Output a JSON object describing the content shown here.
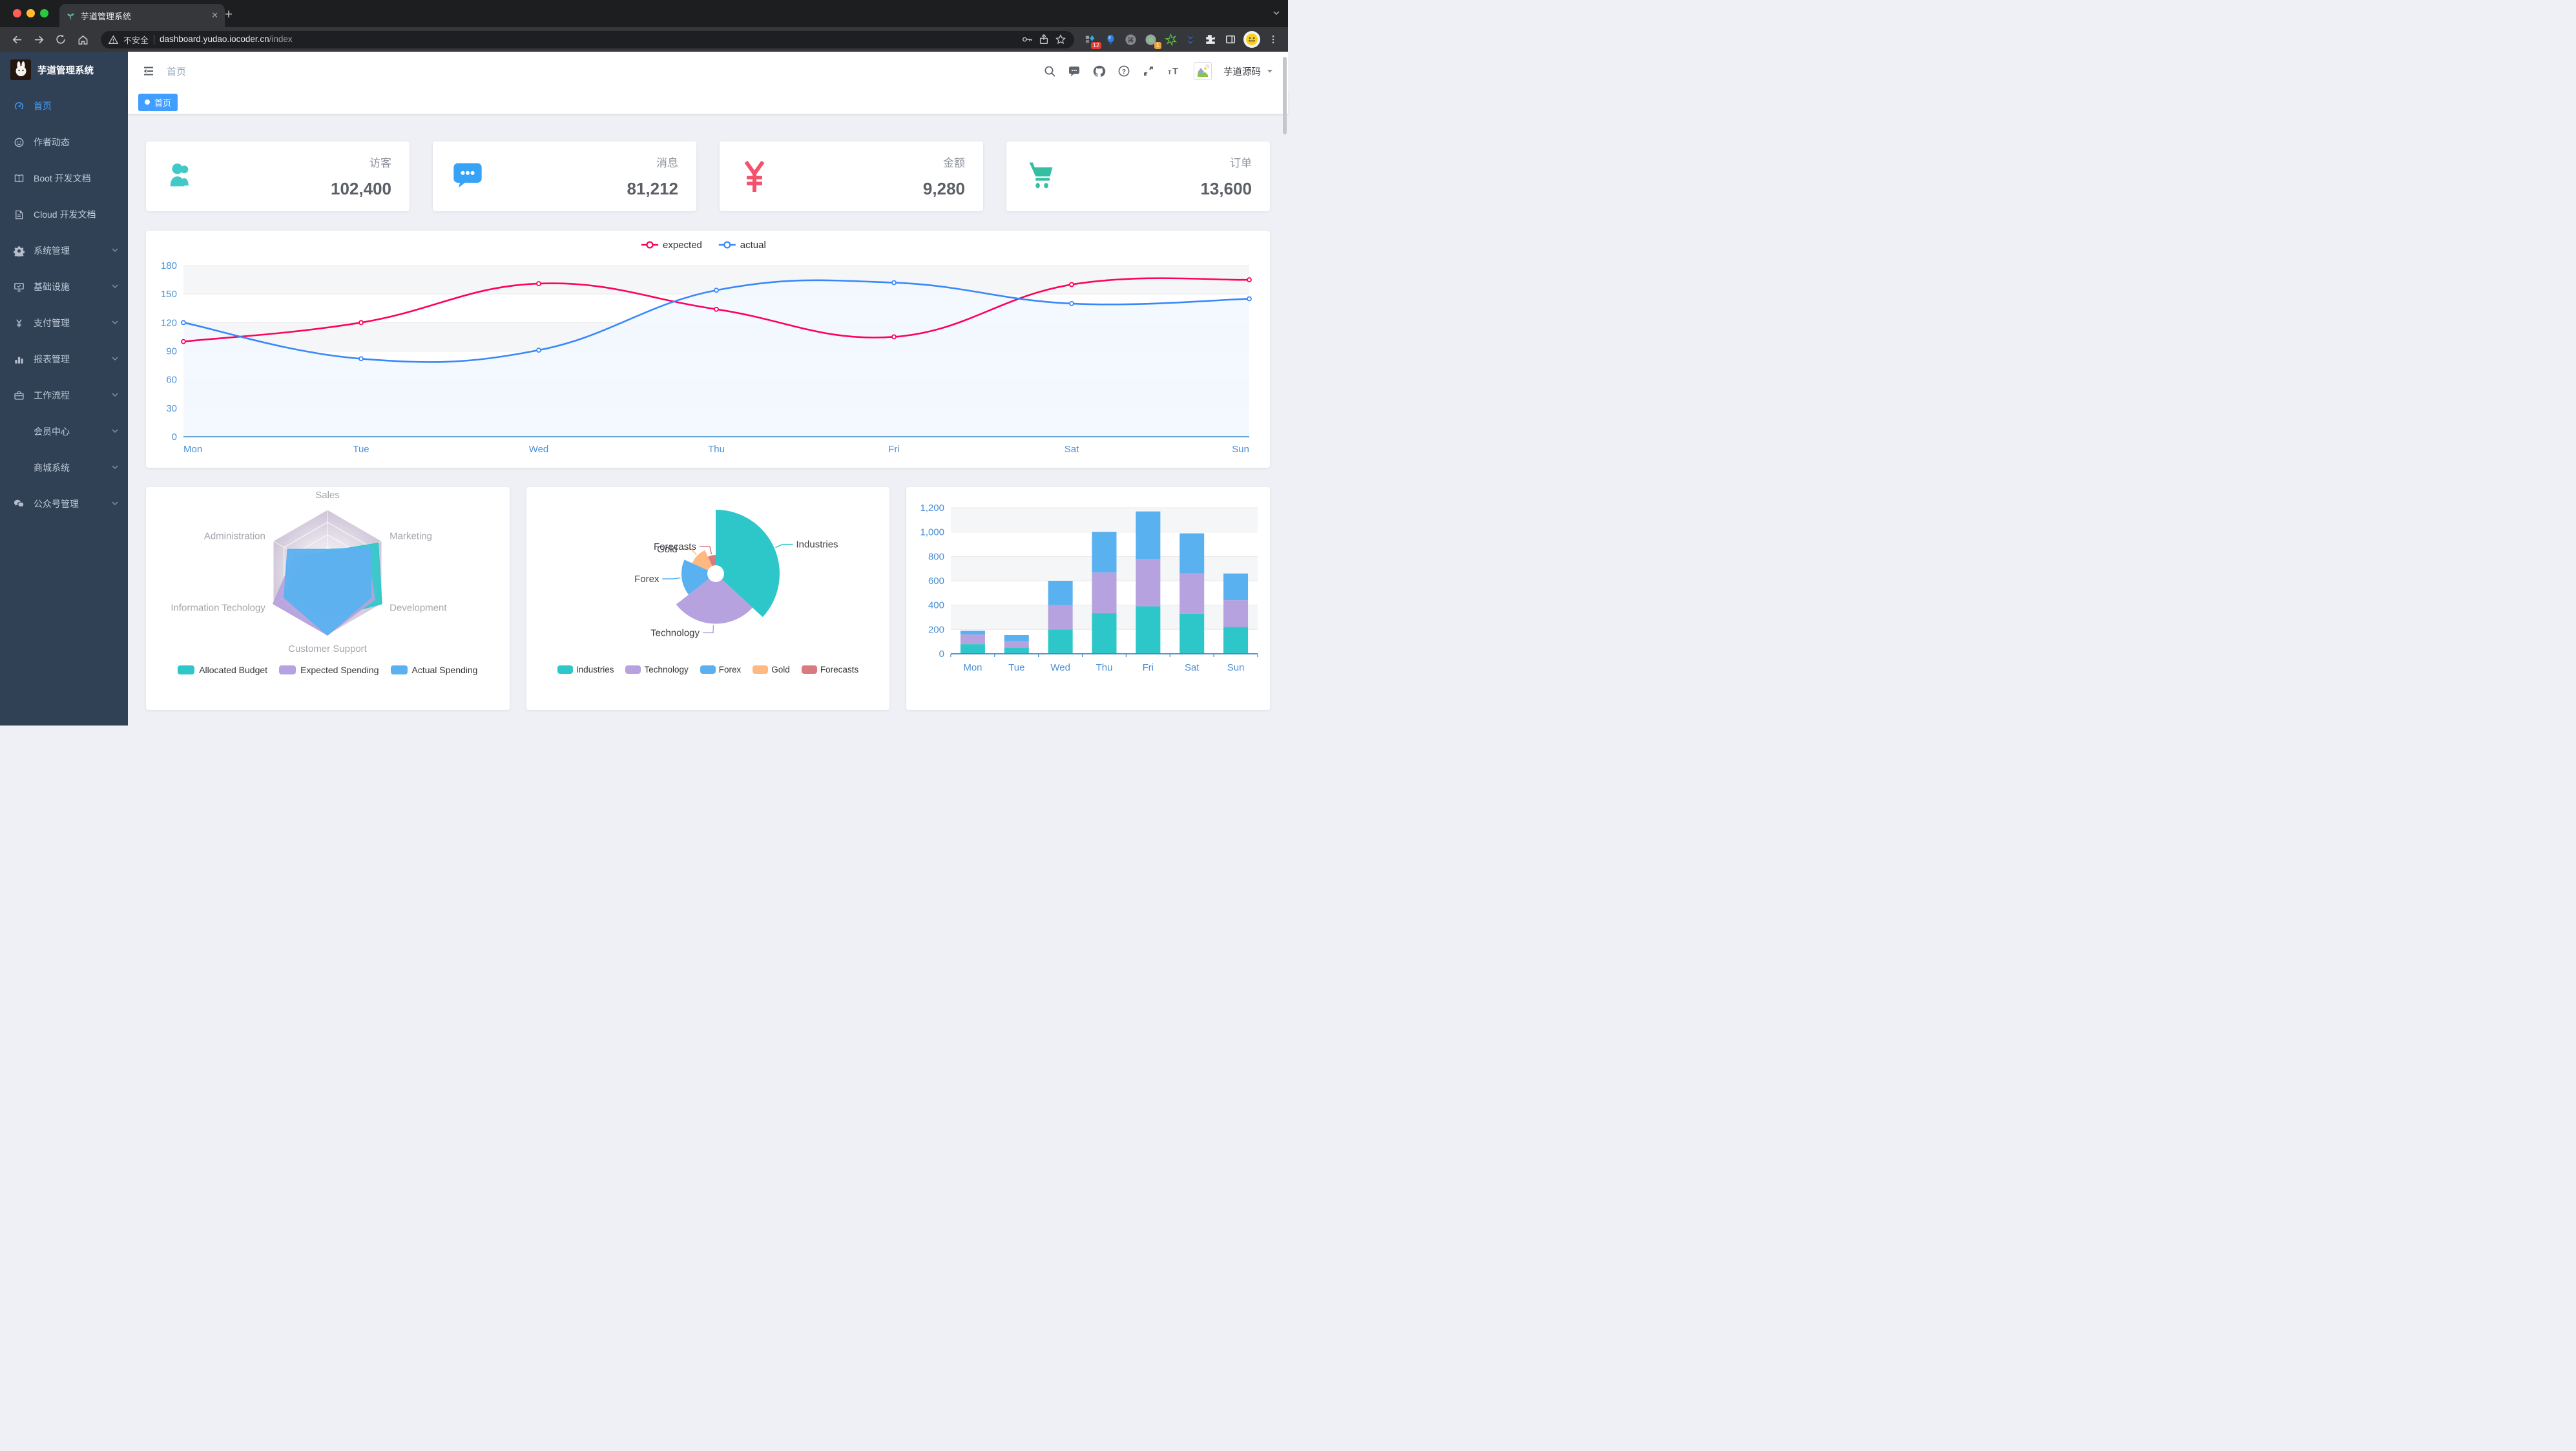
{
  "browser": {
    "tab": {
      "title": "芋道管理系统",
      "close_glyph": "✕",
      "new_tab_glyph": "+"
    },
    "address": {
      "security_label": "不安全",
      "host": "dashboard.yudao.iocoder.cn",
      "path": "/index"
    },
    "badges": {
      "extension_1": "12",
      "extension_2": "1"
    }
  },
  "sidebar": {
    "logo_title": "芋道管理系统",
    "items": [
      {
        "label": "首页",
        "icon": "dashboard-icon",
        "active": true,
        "arrow": false,
        "indent": false
      },
      {
        "label": "作者动态",
        "icon": "people-icon",
        "active": false,
        "arrow": false,
        "indent": false
      },
      {
        "label": "Boot 开发文档",
        "icon": "book-icon",
        "active": false,
        "arrow": false,
        "indent": false
      },
      {
        "label": "Cloud 开发文档",
        "icon": "document-icon",
        "active": false,
        "arrow": false,
        "indent": false
      },
      {
        "label": "系统管理",
        "icon": "gear-icon",
        "active": false,
        "arrow": true,
        "indent": false
      },
      {
        "label": "基础设施",
        "icon": "monitor-icon",
        "active": false,
        "arrow": true,
        "indent": false
      },
      {
        "label": "支付管理",
        "icon": "yen-icon",
        "active": false,
        "arrow": true,
        "indent": false
      },
      {
        "label": "报表管理",
        "icon": "bar-chart-icon",
        "active": false,
        "arrow": true,
        "indent": false
      },
      {
        "label": "工作流程",
        "icon": "briefcase-icon",
        "active": false,
        "arrow": true,
        "indent": false
      },
      {
        "label": "会员中心",
        "icon": null,
        "active": false,
        "arrow": true,
        "indent": true
      },
      {
        "label": "商城系统",
        "icon": null,
        "active": false,
        "arrow": true,
        "indent": true
      },
      {
        "label": "公众号管理",
        "icon": "wechat-icon",
        "active": false,
        "arrow": true,
        "indent": false
      }
    ]
  },
  "navbar": {
    "breadcrumb": "首页",
    "username": "芋道源码"
  },
  "tags_view": {
    "tags": [
      {
        "label": "首页",
        "active": true
      }
    ]
  },
  "stats": [
    {
      "label": "访客",
      "value": "102,400",
      "icon": "people-group-icon",
      "color": "#40c9c6"
    },
    {
      "label": "消息",
      "value": "81,212",
      "icon": "message-icon",
      "color": "#36a3f7"
    },
    {
      "label": "金额",
      "value": "9,280",
      "icon": "money-icon",
      "color": "#f4516c"
    },
    {
      "label": "订单",
      "value": "13,600",
      "icon": "cart-icon",
      "color": "#34bfa3"
    }
  ],
  "chart_data": [
    {
      "id": "weekly-line",
      "type": "line",
      "x": [
        "Mon",
        "Tue",
        "Wed",
        "Thu",
        "Fri",
        "Sat",
        "Sun"
      ],
      "series": [
        {
          "name": "expected",
          "color": "#FF005A",
          "values": [
            100,
            120,
            161,
            134,
            105,
            160,
            165
          ]
        },
        {
          "name": "actual",
          "color": "#3888fa",
          "area_color": "#f3f8ff",
          "values": [
            120,
            82,
            91,
            154,
            162,
            140,
            145
          ]
        }
      ],
      "ylim": [
        0,
        180
      ],
      "ytick_step": 30,
      "grid": true,
      "legend_position": "top"
    },
    {
      "id": "budget-radar",
      "type": "radar",
      "indicators": [
        "Sales",
        "Administration",
        "Information Techology",
        "Customer Support",
        "Development",
        "Marketing"
      ],
      "max": 15000,
      "series": [
        {
          "name": "Allocated Budget",
          "color": "#2ec7c9",
          "values": [
            5000,
            7000,
            12000,
            11000,
            15000,
            14000
          ]
        },
        {
          "name": "Expected Spending",
          "color": "#b6a2de",
          "values": [
            4000,
            9000,
            15000,
            15000,
            13000,
            11000
          ]
        },
        {
          "name": "Actual Spending",
          "color": "#5ab1ef",
          "values": [
            5500,
            11000,
            12000,
            15000,
            12000,
            12000
          ]
        }
      ],
      "legend_position": "bottom"
    },
    {
      "id": "sector-pie",
      "type": "pie",
      "rose": "radius",
      "items": [
        {
          "name": "Industries",
          "value": 320
        },
        {
          "name": "Technology",
          "value": 240
        },
        {
          "name": "Forex",
          "value": 149
        },
        {
          "name": "Gold",
          "value": 100
        },
        {
          "name": "Forecasts",
          "value": 59
        }
      ],
      "colors": [
        "#2ec7c9",
        "#b6a2de",
        "#5ab1ef",
        "#ffb980",
        "#d87a80"
      ],
      "legend_position": "bottom"
    },
    {
      "id": "weekly-bar",
      "type": "bar",
      "stacked": true,
      "categories": [
        "Mon",
        "Tue",
        "Wed",
        "Thu",
        "Fri",
        "Sat",
        "Sun"
      ],
      "series": [
        {
          "name": "",
          "color": "#2ec7c9",
          "values": [
            79,
            52,
            200,
            334,
            390,
            330,
            220
          ]
        },
        {
          "name": "",
          "color": "#b6a2de",
          "values": [
            80,
            52,
            200,
            334,
            390,
            330,
            220
          ]
        },
        {
          "name": "",
          "color": "#5ab1ef",
          "values": [
            30,
            50,
            200,
            334,
            390,
            330,
            220
          ]
        }
      ],
      "ylim": [
        0,
        1200
      ],
      "ytick_step": 200
    }
  ]
}
